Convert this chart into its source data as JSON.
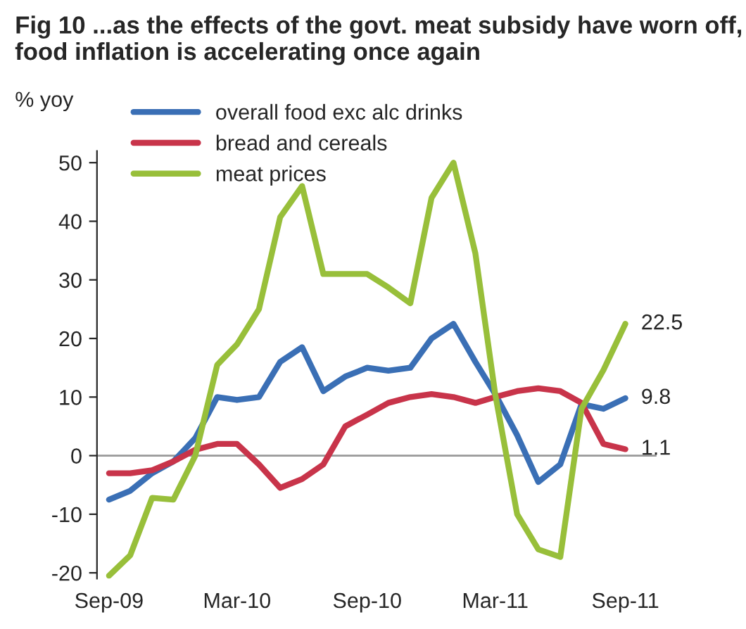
{
  "chart_data": {
    "type": "line",
    "title": "Fig 10 ...as the effects of the govt. meat subsidy have worn off, food inflation is accelerating once again",
    "ylabel": "% yoy",
    "x": [
      "2009-09",
      "2009-10",
      "2009-11",
      "2009-12",
      "2010-01",
      "2010-02",
      "2010-03",
      "2010-04",
      "2010-05",
      "2010-06",
      "2010-07",
      "2010-08",
      "2010-09",
      "2010-10",
      "2010-11",
      "2010-12",
      "2011-01",
      "2011-02",
      "2011-03",
      "2011-04",
      "2011-05",
      "2011-06",
      "2011-07",
      "2011-08",
      "2011-09"
    ],
    "series": [
      {
        "name": "overall food exc alc drinks",
        "color": "#3a6fb5",
        "values": [
          -7.5,
          -6,
          -3,
          -1,
          3,
          10,
          9.5,
          10,
          16,
          18.5,
          11,
          13.5,
          15,
          14.5,
          15,
          20,
          22.5,
          16,
          10.5,
          3.5,
          -4.5,
          -1.5,
          8.8,
          8,
          9.8
        ]
      },
      {
        "name": "bread and cereals",
        "color": "#c8344a",
        "values": [
          -3,
          -3,
          -2.5,
          -1,
          1,
          2,
          2,
          -1.5,
          -5.5,
          -4,
          -1.5,
          5,
          7,
          9,
          10,
          10.5,
          10,
          9,
          10,
          11,
          11.5,
          11,
          9,
          2,
          1.1
        ]
      },
      {
        "name": "meat prices",
        "color": "#98bf3a",
        "values": [
          -20.5,
          -17,
          -7.2,
          -7.5,
          0,
          15.5,
          19,
          25,
          40.7,
          46,
          31,
          31,
          31,
          28.7,
          26,
          44,
          50,
          34.5,
          10.5,
          -10,
          -16,
          -17.3,
          8,
          14.6,
          22.5
        ]
      }
    ],
    "ylim": [
      -21,
      52
    ],
    "yticks": [
      -20,
      -10,
      0,
      10,
      20,
      30,
      40,
      50
    ],
    "xlim": [
      "2009-08-15",
      "2011-10-15"
    ],
    "xticks": [
      {
        "value": "2009-09",
        "label": "Sep-09"
      },
      {
        "value": "2010-03",
        "label": "Mar-10"
      },
      {
        "value": "2010-09",
        "label": "Sep-10"
      },
      {
        "value": "2011-03",
        "label": "Mar-11"
      },
      {
        "value": "2011-09",
        "label": "Sep-11"
      }
    ],
    "ref_lines": [
      {
        "axis": "y",
        "value": 0,
        "color": "#999999"
      }
    ],
    "annotations": [
      {
        "text": "22.5",
        "x": "2011-09",
        "y": 22.5
      },
      {
        "text": "9.8",
        "x": "2011-09",
        "y": 9.8
      },
      {
        "text": "1.1",
        "x": "2011-09",
        "y": 1.1
      }
    ],
    "legend": "top left",
    "grid": false,
    "marker": "none",
    "line_style": "solid"
  }
}
